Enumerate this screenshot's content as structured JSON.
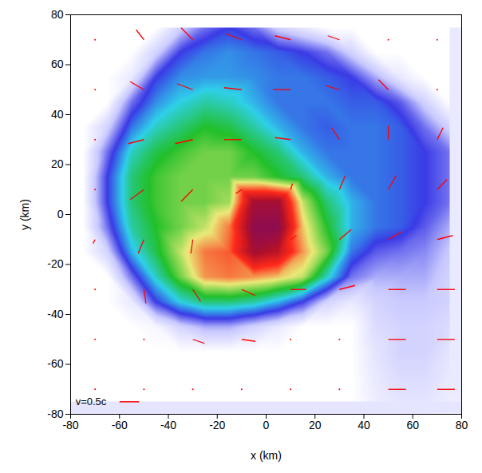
{
  "chart_data": {
    "type": "heatmap",
    "x_label": "x (km)",
    "y_label": "y (km)",
    "xlim": [
      -80,
      80
    ],
    "ylim": [
      -80,
      80
    ],
    "xticks": [
      -80,
      -60,
      -40,
      -20,
      0,
      20,
      40,
      60,
      80
    ],
    "yticks": [
      -80,
      -60,
      -40,
      -20,
      0,
      20,
      40,
      60,
      80
    ],
    "grid": false,
    "density": {
      "x": [
        -75,
        -65,
        -55,
        -45,
        -35,
        -25,
        -15,
        -5,
        5,
        15,
        25,
        35,
        45,
        55,
        65,
        75
      ],
      "y": [
        75,
        65,
        55,
        45,
        35,
        25,
        15,
        5,
        -5,
        -15,
        -25,
        -35,
        -45,
        -55,
        -65,
        -75
      ],
      "clim": [
        0,
        1
      ],
      "values": [
        [
          0,
          0,
          0,
          0,
          0.1,
          0.2,
          0.25,
          0.2,
          0.1,
          0.05,
          0,
          0,
          0,
          0,
          0,
          0
        ],
        [
          0,
          0,
          0,
          0.1,
          0.25,
          0.3,
          0.32,
          0.3,
          0.28,
          0.25,
          0.2,
          0.1,
          0,
          0,
          0,
          0
        ],
        [
          0,
          0,
          0.05,
          0.25,
          0.32,
          0.33,
          0.33,
          0.32,
          0.3,
          0.3,
          0.28,
          0.25,
          0.15,
          0.05,
          0,
          0
        ],
        [
          0,
          0,
          0.2,
          0.32,
          0.38,
          0.42,
          0.4,
          0.35,
          0.3,
          0.3,
          0.3,
          0.28,
          0.28,
          0.22,
          0.1,
          0
        ],
        [
          0,
          0.1,
          0.3,
          0.4,
          0.45,
          0.5,
          0.48,
          0.42,
          0.35,
          0.3,
          0.28,
          0.3,
          0.3,
          0.28,
          0.2,
          0.1
        ],
        [
          0,
          0.2,
          0.4,
          0.48,
          0.52,
          0.55,
          0.55,
          0.5,
          0.45,
          0.35,
          0.3,
          0.3,
          0.3,
          0.28,
          0.25,
          0.2
        ],
        [
          0,
          0.25,
          0.45,
          0.52,
          0.55,
          0.55,
          0.55,
          0.55,
          0.5,
          0.45,
          0.35,
          0.3,
          0.3,
          0.28,
          0.25,
          0.2
        ],
        [
          0,
          0.25,
          0.45,
          0.52,
          0.55,
          0.55,
          0.58,
          0.9,
          0.9,
          0.6,
          0.45,
          0.35,
          0.3,
          0.28,
          0.25,
          0.2
        ],
        [
          0,
          0.2,
          0.42,
          0.5,
          0.55,
          0.6,
          0.7,
          0.95,
          0.95,
          0.65,
          0.5,
          0.35,
          0.3,
          0.28,
          0.22,
          0.15
        ],
        [
          0,
          0.1,
          0.35,
          0.48,
          0.6,
          0.7,
          0.72,
          0.9,
          0.85,
          0.68,
          0.55,
          0.3,
          0.22,
          0.2,
          0.18,
          0.12
        ],
        [
          0,
          0,
          0.2,
          0.4,
          0.55,
          0.68,
          0.7,
          0.68,
          0.65,
          0.6,
          0.4,
          0.2,
          0.15,
          0.15,
          0.15,
          0.1
        ],
        [
          0,
          0,
          0.05,
          0.25,
          0.38,
          0.45,
          0.45,
          0.42,
          0.35,
          0.25,
          0.1,
          0.05,
          0.1,
          0.12,
          0.12,
          0.1
        ],
        [
          0,
          0,
          0,
          0.02,
          0.1,
          0.15,
          0.15,
          0.1,
          0.05,
          0,
          0,
          0,
          0.08,
          0.1,
          0.1,
          0.08
        ],
        [
          0,
          0,
          0,
          0,
          0,
          0,
          0,
          0,
          0,
          0,
          0,
          0,
          0.06,
          0.1,
          0.1,
          0.06
        ],
        [
          0,
          0,
          0,
          0,
          0,
          0,
          0,
          0,
          0,
          0,
          0,
          0,
          0.05,
          0.08,
          0.08,
          0.05
        ],
        [
          0,
          0,
          0,
          0,
          0,
          0,
          0,
          0,
          0,
          0,
          0,
          0,
          0.04,
          0.06,
          0.06,
          0.04
        ]
      ]
    },
    "vectors": {
      "color": "red",
      "x": [
        -70,
        -50,
        -30,
        -10,
        10,
        30,
        50,
        70
      ],
      "y": [
        70,
        50,
        30,
        10,
        -10,
        -30,
        -50,
        -70
      ],
      "vx": [
        [
          0,
          -0.2,
          -0.3,
          -0.4,
          -0.4,
          -0.3,
          0,
          0
        ],
        [
          0,
          -0.35,
          -0.4,
          -0.45,
          -0.45,
          -0.35,
          -0.25,
          0
        ],
        [
          0,
          -0.4,
          -0.45,
          -0.45,
          -0.4,
          -0.2,
          0,
          0.15
        ],
        [
          0,
          -0.35,
          -0.3,
          -0.15,
          0.05,
          0.15,
          0.2,
          0.25
        ],
        [
          -0.05,
          -0.15,
          -0.05,
          0.1,
          0.15,
          0.3,
          0.35,
          0.4
        ],
        [
          0,
          0.05,
          0.2,
          0.35,
          0.4,
          0.4,
          0.45,
          0.45
        ],
        [
          0,
          0,
          0.3,
          0.35,
          0,
          0,
          0.45,
          0.45
        ],
        [
          0,
          0,
          0,
          0,
          0,
          0,
          0.45,
          0.45
        ]
      ],
      "vy": [
        [
          0,
          0.25,
          0.3,
          0.15,
          0.1,
          0.1,
          0,
          0
        ],
        [
          0,
          0.2,
          0.15,
          0.05,
          0,
          0.1,
          0.25,
          0
        ],
        [
          0,
          -0.1,
          -0.1,
          0,
          0.05,
          0.3,
          0.35,
          0.3
        ],
        [
          0,
          -0.25,
          -0.3,
          -0.1,
          0.15,
          0.35,
          0.35,
          0.25
        ],
        [
          -0.1,
          -0.35,
          -0.35,
          -0.15,
          0.1,
          0.25,
          0.2,
          0.1
        ],
        [
          0,
          -0.35,
          -0.3,
          -0.15,
          0,
          0.1,
          0,
          0
        ],
        [
          0,
          0,
          -0.1,
          -0.05,
          0,
          0,
          0,
          0
        ],
        [
          0,
          0,
          0,
          0,
          0,
          0,
          0,
          0
        ]
      ]
    },
    "reference_vector": {
      "label": "v=0.5c",
      "value": 0.5
    }
  }
}
